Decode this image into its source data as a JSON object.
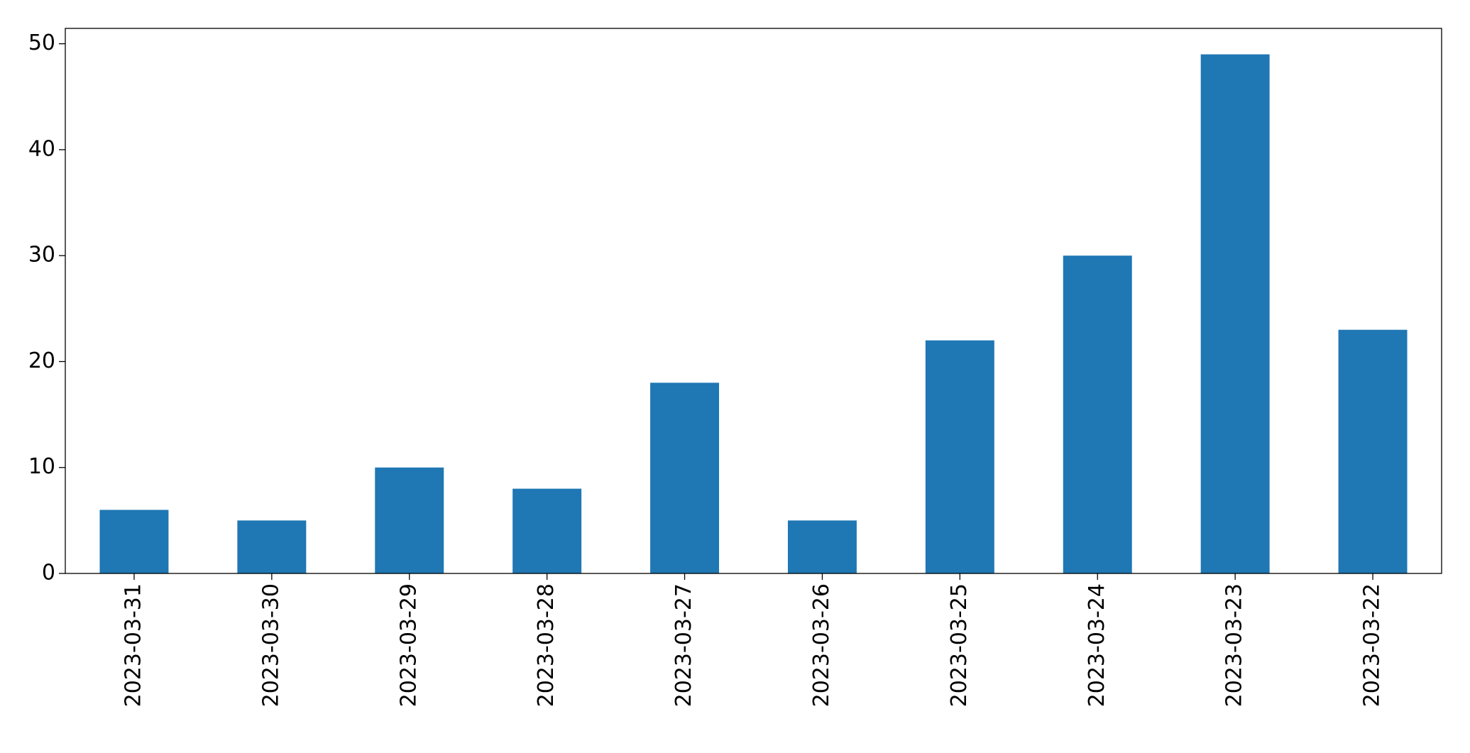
{
  "chart_data": {
    "type": "bar",
    "categories": [
      "2023-03-31",
      "2023-03-30",
      "2023-03-29",
      "2023-03-28",
      "2023-03-27",
      "2023-03-26",
      "2023-03-25",
      "2023-03-24",
      "2023-03-23",
      "2023-03-22"
    ],
    "values": [
      6,
      5,
      10,
      8,
      18,
      5,
      22,
      30,
      49,
      23
    ],
    "color": "#1f77b4",
    "ylim": [
      0,
      51.45
    ],
    "yticks": [
      0,
      10,
      20,
      30,
      40,
      50
    ],
    "grid": false
  }
}
